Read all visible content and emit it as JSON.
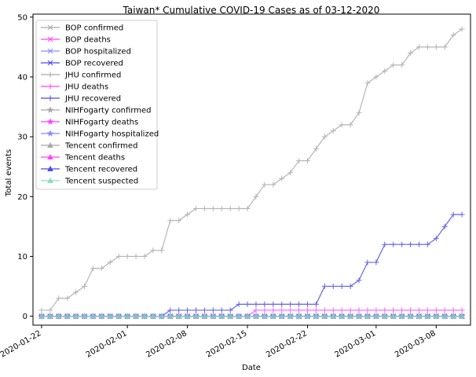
{
  "chart_data": {
    "type": "line",
    "title": "Taiwan* Cumulative COVID-19 Cases as of 03-12-2020",
    "xlabel": "Date",
    "ylabel": "Total events",
    "ylim": [
      -1.5,
      50.5
    ],
    "xlim": [
      "2020-01-21",
      "2020-03-12"
    ],
    "x_ticks": [
      "2020-01-22",
      "2020-02-01",
      "2020-02-08",
      "2020-02-15",
      "2020-02-22",
      "2020-03-01",
      "2020-03-08"
    ],
    "y_ticks": [
      0,
      10,
      20,
      30,
      40,
      50
    ],
    "legend_position": "top-left",
    "dates": [
      "2020-01-22",
      "2020-01-23",
      "2020-01-24",
      "2020-01-25",
      "2020-01-26",
      "2020-01-27",
      "2020-01-28",
      "2020-01-29",
      "2020-01-30",
      "2020-01-31",
      "2020-02-01",
      "2020-02-02",
      "2020-02-03",
      "2020-02-04",
      "2020-02-05",
      "2020-02-06",
      "2020-02-07",
      "2020-02-08",
      "2020-02-09",
      "2020-02-10",
      "2020-02-11",
      "2020-02-12",
      "2020-02-13",
      "2020-02-14",
      "2020-02-15",
      "2020-02-16",
      "2020-02-17",
      "2020-02-18",
      "2020-02-19",
      "2020-02-20",
      "2020-02-21",
      "2020-02-22",
      "2020-02-23",
      "2020-02-24",
      "2020-02-25",
      "2020-02-26",
      "2020-02-27",
      "2020-02-28",
      "2020-02-29",
      "2020-03-01",
      "2020-03-02",
      "2020-03-03",
      "2020-03-04",
      "2020-03-05",
      "2020-03-06",
      "2020-03-07",
      "2020-03-08",
      "2020-03-09",
      "2020-03-10",
      "2020-03-11"
    ],
    "series": [
      {
        "name": "BOP confirmed",
        "color": "#a9a9a9",
        "marker": "x",
        "values": [
          0,
          0,
          0,
          0,
          0,
          0,
          0,
          0,
          0,
          0,
          0,
          0,
          0,
          0,
          0,
          0,
          0,
          0,
          0,
          0,
          0,
          0,
          0,
          0,
          0,
          0,
          0,
          0,
          0,
          0,
          0,
          0,
          0,
          0,
          0,
          0,
          0,
          0,
          0,
          0,
          0,
          0,
          0,
          0,
          0,
          0,
          0,
          0,
          0,
          0
        ]
      },
      {
        "name": "BOP deaths",
        "color": "#ff44ff",
        "marker": "x",
        "values": [
          0,
          0,
          0,
          0,
          0,
          0,
          0,
          0,
          0,
          0,
          0,
          0,
          0,
          0,
          0,
          0,
          0,
          0,
          0,
          0,
          0,
          0,
          0,
          0,
          0,
          0,
          0,
          0,
          0,
          0,
          0,
          0,
          0,
          0,
          0,
          0,
          0,
          0,
          0,
          0,
          0,
          0,
          0,
          0,
          0,
          0,
          0,
          0,
          0,
          0
        ]
      },
      {
        "name": "BOP hospitalized",
        "color": "#8a8aff",
        "marker": "x",
        "values": [
          0,
          0,
          0,
          0,
          0,
          0,
          0,
          0,
          0,
          0,
          0,
          0,
          0,
          0,
          0,
          0,
          0,
          0,
          0,
          0,
          0,
          0,
          0,
          0,
          0,
          0,
          0,
          0,
          0,
          0,
          0,
          0,
          0,
          0,
          0,
          0,
          0,
          0,
          0,
          0,
          0,
          0,
          0,
          0,
          0,
          0,
          0,
          0,
          0,
          0
        ]
      },
      {
        "name": "BOP recovered",
        "color": "#4a4aee",
        "marker": "x",
        "values": [
          0,
          0,
          0,
          0,
          0,
          0,
          0,
          0,
          0,
          0,
          0,
          0,
          0,
          0,
          0,
          0,
          0,
          0,
          0,
          0,
          0,
          0,
          0,
          0,
          0,
          0,
          0,
          0,
          0,
          0,
          0,
          0,
          0,
          0,
          0,
          0,
          0,
          0,
          0,
          0,
          0,
          0,
          0,
          0,
          0,
          0,
          0,
          0,
          0,
          0
        ]
      },
      {
        "name": "JHU confirmed",
        "color": "#a9a9a9",
        "marker": "+",
        "values": [
          1,
          1,
          3,
          3,
          4,
          5,
          8,
          8,
          9,
          10,
          10,
          10,
          10,
          11,
          11,
          16,
          16,
          17,
          18,
          18,
          18,
          18,
          18,
          18,
          18,
          20,
          22,
          22,
          23,
          24,
          26,
          26,
          28,
          30,
          31,
          32,
          32,
          34,
          39,
          40,
          41,
          42,
          42,
          44,
          45,
          45,
          45,
          45,
          47,
          48
        ]
      },
      {
        "name": "JHU deaths",
        "color": "#ff44ff",
        "marker": "+",
        "values": [
          0,
          0,
          0,
          0,
          0,
          0,
          0,
          0,
          0,
          0,
          0,
          0,
          0,
          0,
          0,
          0,
          0,
          0,
          0,
          0,
          0,
          0,
          0,
          0,
          0,
          1,
          1,
          1,
          1,
          1,
          1,
          1,
          1,
          1,
          1,
          1,
          1,
          1,
          1,
          1,
          1,
          1,
          1,
          1,
          1,
          1,
          1,
          1,
          1,
          1
        ]
      },
      {
        "name": "JHU recovered",
        "color": "#4a4aee",
        "marker": "+",
        "values": [
          0,
          0,
          0,
          0,
          0,
          0,
          0,
          0,
          0,
          0,
          0,
          0,
          0,
          0,
          0,
          1,
          1,
          1,
          1,
          1,
          1,
          1,
          1,
          2,
          2,
          2,
          2,
          2,
          2,
          2,
          2,
          2,
          2,
          5,
          5,
          5,
          5,
          6,
          9,
          9,
          12,
          12,
          12,
          12,
          12,
          12,
          13,
          15,
          17,
          17
        ]
      },
      {
        "name": "NIHFogarty confirmed",
        "color": "#a9a9a9",
        "marker": "star",
        "values": [
          0,
          0,
          0,
          0,
          0,
          0,
          0,
          0,
          0,
          0,
          0,
          0,
          0,
          0,
          0,
          0,
          0,
          0,
          0,
          0,
          0,
          0,
          0,
          0,
          0,
          0,
          0,
          0,
          0,
          0,
          0,
          0,
          0,
          0,
          0,
          0,
          0,
          0,
          0,
          0,
          0,
          0,
          0,
          0,
          0,
          0,
          0,
          0,
          0,
          0
        ]
      },
      {
        "name": "NIHFogarty deaths",
        "color": "#ff44ff",
        "marker": "star",
        "values": [
          0,
          0,
          0,
          0,
          0,
          0,
          0,
          0,
          0,
          0,
          0,
          0,
          0,
          0,
          0,
          0,
          0,
          0,
          0,
          0,
          0,
          0,
          0,
          0,
          0,
          0,
          0,
          0,
          0,
          0,
          0,
          0,
          0,
          0,
          0,
          0,
          0,
          0,
          0,
          0,
          0,
          0,
          0,
          0,
          0,
          0,
          0,
          0,
          0,
          0
        ]
      },
      {
        "name": "NIHFogarty hospitalized",
        "color": "#8a8aff",
        "marker": "star",
        "values": [
          0,
          0,
          0,
          0,
          0,
          0,
          0,
          0,
          0,
          0,
          0,
          0,
          0,
          0,
          0,
          0,
          0,
          0,
          0,
          0,
          0,
          0,
          0,
          0,
          0,
          0,
          0,
          0,
          0,
          0,
          0,
          0,
          0,
          0,
          0,
          0,
          0,
          0,
          0,
          0,
          0,
          0,
          0,
          0,
          0,
          0,
          0,
          0,
          0,
          0
        ]
      },
      {
        "name": "Tencent confirmed",
        "color": "#a9a9a9",
        "marker": "triangle",
        "values": [
          0,
          0,
          0,
          0,
          0,
          0,
          0,
          0,
          0,
          0,
          0,
          0,
          0,
          0,
          0,
          0,
          0,
          0,
          0,
          0,
          0,
          0,
          0,
          0,
          0,
          0,
          0,
          0,
          0,
          0,
          0,
          0,
          0,
          0,
          0,
          0,
          0,
          0,
          0,
          0,
          0,
          0,
          0,
          0,
          0,
          0,
          0,
          0,
          0,
          0
        ]
      },
      {
        "name": "Tencent deaths",
        "color": "#ff44ff",
        "marker": "triangle",
        "values": [
          0,
          0,
          0,
          0,
          0,
          0,
          0,
          0,
          0,
          0,
          0,
          0,
          0,
          0,
          0,
          0,
          0,
          0,
          0,
          0,
          0,
          0,
          0,
          0,
          0,
          0,
          0,
          0,
          0,
          0,
          0,
          0,
          0,
          0,
          0,
          0,
          0,
          0,
          0,
          0,
          0,
          0,
          0,
          0,
          0,
          0,
          0,
          0,
          0,
          0
        ]
      },
      {
        "name": "Tencent recovered",
        "color": "#4a4aee",
        "marker": "triangle",
        "values": [
          0,
          0,
          0,
          0,
          0,
          0,
          0,
          0,
          0,
          0,
          0,
          0,
          0,
          0,
          0,
          0,
          0,
          0,
          0,
          0,
          0,
          0,
          0,
          0,
          0,
          0,
          0,
          0,
          0,
          0,
          0,
          0,
          0,
          0,
          0,
          0,
          0,
          0,
          0,
          0,
          0,
          0,
          0,
          0,
          0,
          0,
          0,
          0,
          0,
          0
        ]
      },
      {
        "name": "Tencent suspected",
        "color": "#88ddbb",
        "marker": "triangle",
        "values": [
          0,
          0,
          0,
          0,
          0,
          0,
          0,
          0,
          0,
          0,
          0,
          0,
          0,
          0,
          0,
          0,
          0,
          0,
          0,
          0,
          0,
          0,
          0,
          0,
          0,
          0,
          0,
          0,
          0,
          0,
          0,
          0,
          0,
          0,
          0,
          0,
          0,
          0,
          0,
          0,
          0,
          0,
          0,
          0,
          0,
          0,
          0,
          0,
          0,
          0
        ]
      }
    ]
  }
}
